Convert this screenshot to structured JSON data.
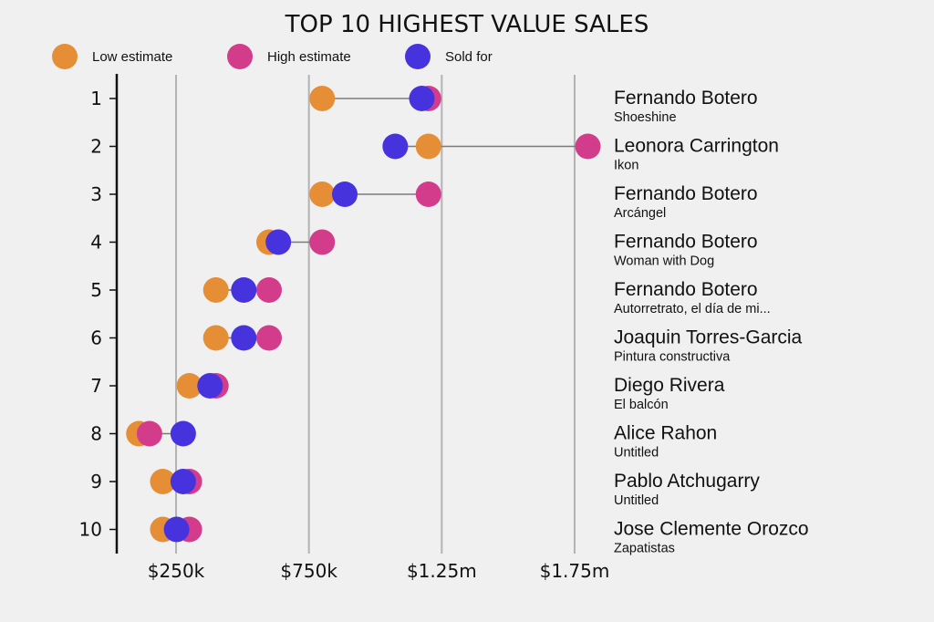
{
  "chart_data": {
    "type": "dot-range",
    "title": "TOP 10 HIGHEST VALUE SALES",
    "xlabel": "",
    "ylabel": "",
    "units": "USD thousands",
    "xlim": [
      0,
      1850
    ],
    "x_ticks": [
      250,
      750,
      1250,
      1750
    ],
    "x_tick_labels": [
      "$250k",
      "$750k",
      "$1.25m",
      "$1.75m"
    ],
    "grid": "vertical",
    "legend_position": "top-left",
    "colors": {
      "low": "#e68e35",
      "high": "#d33c8b",
      "sold": "#4733de",
      "background": "#f0f0f0",
      "connector": "#7a7a7a",
      "gridline": "#b3b3b3"
    },
    "legend": [
      {
        "key": "low",
        "label": "Low estimate"
      },
      {
        "key": "high",
        "label": "High estimate"
      },
      {
        "key": "sold",
        "label": "Sold for"
      }
    ],
    "rows": [
      {
        "rank": "1",
        "artist": "Fernando Botero",
        "work": "Shoeshine",
        "low": 800,
        "high": 1200,
        "sold": 1175
      },
      {
        "rank": "2",
        "artist": "Leonora Carrington",
        "work": "Ikon",
        "low": 1200,
        "high": 1800,
        "sold": 1075
      },
      {
        "rank": "3",
        "artist": "Fernando Botero",
        "work": "Arcángel",
        "low": 800,
        "high": 1200,
        "sold": 885
      },
      {
        "rank": "4",
        "artist": "Fernando Botero",
        "work": "Woman with Dog",
        "low": 600,
        "high": 800,
        "sold": 635
      },
      {
        "rank": "5",
        "artist": "Fernando Botero",
        "work": "Autorretrato, el día de mi...",
        "low": 400,
        "high": 600,
        "sold": 505
      },
      {
        "rank": "6",
        "artist": "Joaquin Torres-Garcia",
        "work": "Pintura constructiva",
        "low": 400,
        "high": 600,
        "sold": 505
      },
      {
        "rank": "7",
        "artist": "Diego Rivera",
        "work": "El balcón",
        "low": 300,
        "high": 400,
        "sold": 378
      },
      {
        "rank": "8",
        "artist": "Alice Rahon",
        "work": "Untitled",
        "low": 110,
        "high": 150,
        "sold": 277
      },
      {
        "rank": "9",
        "artist": "Pablo Atchugarry",
        "work": "Untitled",
        "low": 200,
        "high": 300,
        "sold": 277
      },
      {
        "rank": "10",
        "artist": "Jose Clemente Orozco",
        "work": "Zapatistas",
        "low": 200,
        "high": 300,
        "sold": 252
      }
    ]
  }
}
